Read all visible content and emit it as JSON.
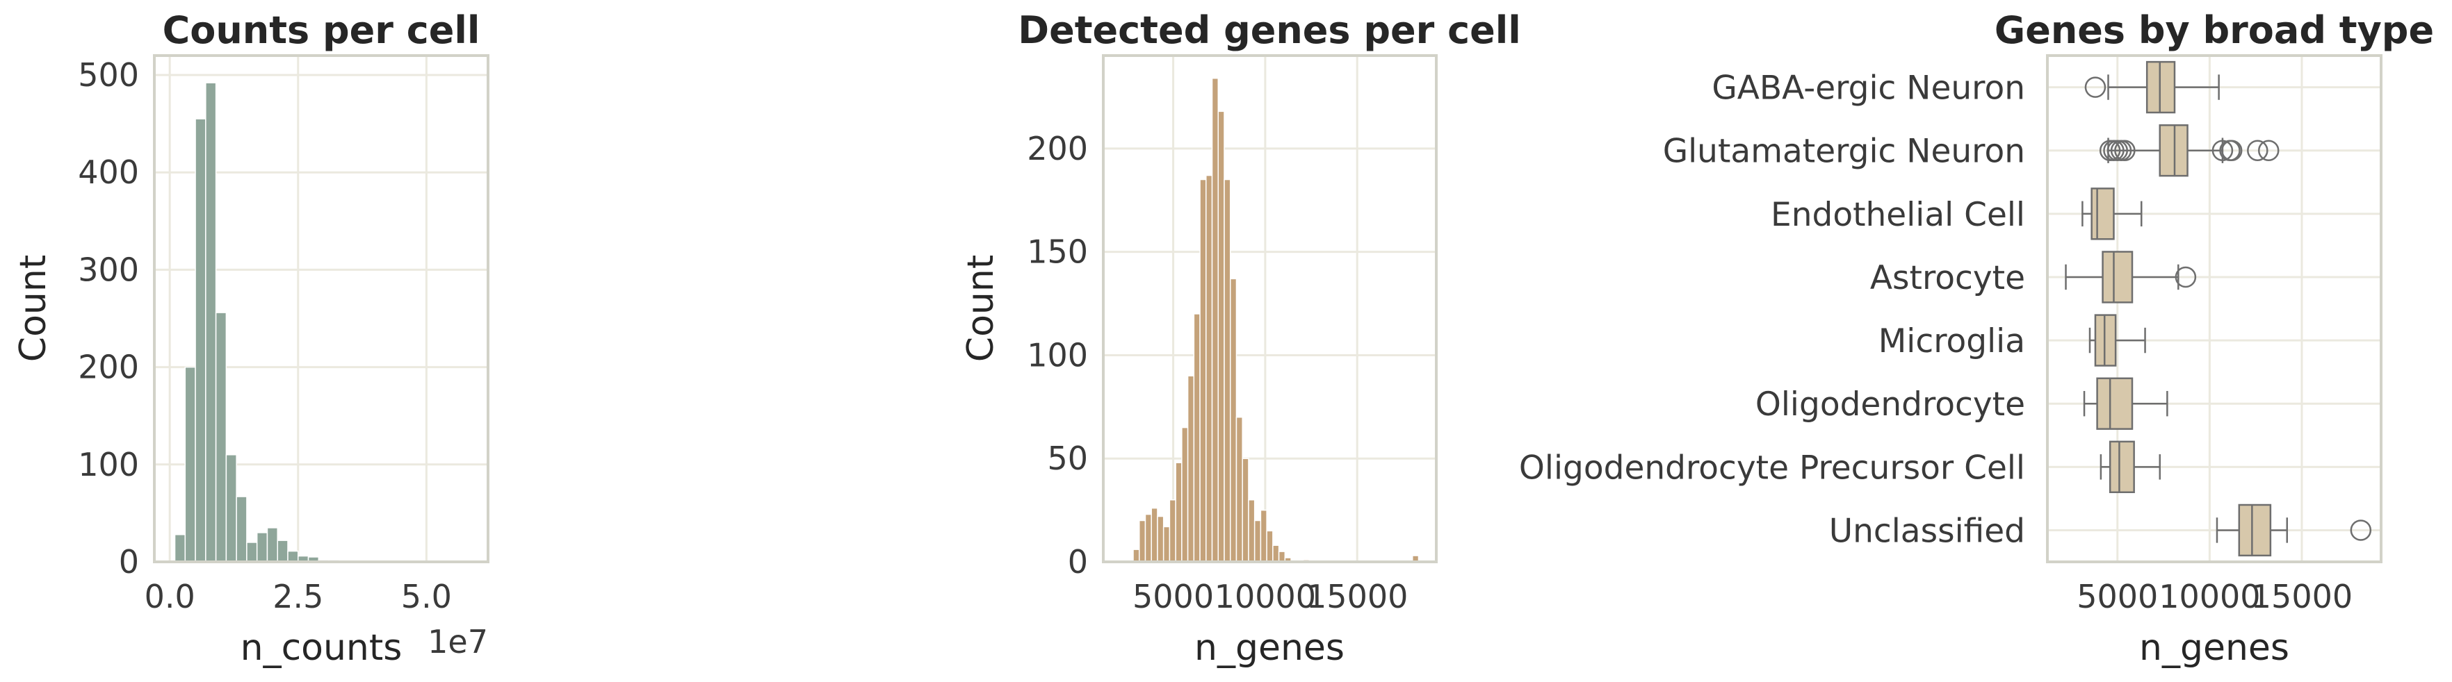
{
  "chart_data": [
    {
      "type": "bar",
      "subtype": "histogram",
      "title": "Counts per cell",
      "xlabel": "n_counts",
      "ylabel": "Count",
      "x_offset_label": "1e7",
      "xlim": [
        -0.3,
        6.2
      ],
      "ylim": [
        0,
        520
      ],
      "xticks": [
        "0.0",
        "2.5",
        "5.0"
      ],
      "yticks": [
        "0",
        "100",
        "200",
        "300",
        "400",
        "500"
      ],
      "bin_width": 0.2,
      "bins": [
        {
          "x": 0.2,
          "count": 28
        },
        {
          "x": 0.4,
          "count": 200
        },
        {
          "x": 0.6,
          "count": 455
        },
        {
          "x": 0.8,
          "count": 492
        },
        {
          "x": 1.0,
          "count": 256
        },
        {
          "x": 1.2,
          "count": 110
        },
        {
          "x": 1.4,
          "count": 67
        },
        {
          "x": 1.6,
          "count": 20
        },
        {
          "x": 1.8,
          "count": 30
        },
        {
          "x": 2.0,
          "count": 35
        },
        {
          "x": 2.2,
          "count": 22
        },
        {
          "x": 2.4,
          "count": 11
        },
        {
          "x": 2.6,
          "count": 6
        },
        {
          "x": 2.8,
          "count": 5
        },
        {
          "x": 3.0,
          "count": 2
        },
        {
          "x": 3.2,
          "count": 2
        },
        {
          "x": 3.4,
          "count": 1
        },
        {
          "x": 3.6,
          "count": 1
        },
        {
          "x": 3.8,
          "count": 1
        },
        {
          "x": 4.0,
          "count": 1
        },
        {
          "x": 4.4,
          "count": 1
        },
        {
          "x": 5.8,
          "count": 1
        }
      ],
      "grid": true,
      "color": "#8fa69a"
    },
    {
      "type": "bar",
      "subtype": "histogram",
      "title": "Detected genes per cell",
      "xlabel": "n_genes",
      "ylabel": "Count",
      "xlim": [
        1200,
        19300
      ],
      "ylim": [
        0,
        245
      ],
      "xticks": [
        "5000",
        "10000",
        "15000"
      ],
      "yticks": [
        "0",
        "50",
        "100",
        "150",
        "200"
      ],
      "bin_width": 330,
      "bins": [
        {
          "x": 2990,
          "count": 6
        },
        {
          "x": 3320,
          "count": 20
        },
        {
          "x": 3650,
          "count": 23
        },
        {
          "x": 3980,
          "count": 26
        },
        {
          "x": 4310,
          "count": 22
        },
        {
          "x": 4640,
          "count": 17
        },
        {
          "x": 4970,
          "count": 30
        },
        {
          "x": 5300,
          "count": 48
        },
        {
          "x": 5630,
          "count": 65
        },
        {
          "x": 5960,
          "count": 90
        },
        {
          "x": 6290,
          "count": 120
        },
        {
          "x": 6620,
          "count": 185
        },
        {
          "x": 6950,
          "count": 187
        },
        {
          "x": 7280,
          "count": 234
        },
        {
          "x": 7610,
          "count": 218
        },
        {
          "x": 7940,
          "count": 185
        },
        {
          "x": 8270,
          "count": 137
        },
        {
          "x": 8600,
          "count": 70
        },
        {
          "x": 8930,
          "count": 50
        },
        {
          "x": 9260,
          "count": 30
        },
        {
          "x": 9590,
          "count": 20
        },
        {
          "x": 9920,
          "count": 25
        },
        {
          "x": 10250,
          "count": 15
        },
        {
          "x": 10580,
          "count": 8
        },
        {
          "x": 10910,
          "count": 5
        },
        {
          "x": 11240,
          "count": 2
        },
        {
          "x": 12230,
          "count": 1
        },
        {
          "x": 18170,
          "count": 3
        }
      ],
      "grid": true,
      "color": "#c4a27a"
    },
    {
      "type": "box",
      "orientation": "horizontal",
      "title": "Genes by broad type",
      "xlabel": "n_genes",
      "ylabel": "",
      "xlim": [
        1200,
        19300
      ],
      "xticks": [
        "5000",
        "10000",
        "15000"
      ],
      "categories": [
        "GABA-ergic Neuron",
        "Glutamatergic Neuron",
        "Endothelial Cell",
        "Astrocyte",
        "Microglia",
        "Oligodendrocyte",
        "Oligodendrocyte Precursor Cell",
        "Unclassified"
      ],
      "boxes": [
        {
          "whislo": 4500,
          "q1": 6600,
          "med": 7300,
          "q3": 8100,
          "whishi": 10500,
          "fliers": [
            3800
          ]
        },
        {
          "whislo": 4500,
          "q1": 7300,
          "med": 8100,
          "q3": 8800,
          "whishi": 10700,
          "fliers": [
            4600,
            4800,
            5000,
            5200,
            5400,
            10700,
            11100,
            11200,
            12600,
            13200
          ]
        },
        {
          "whislo": 3100,
          "q1": 3600,
          "med": 3900,
          "q3": 4800,
          "whishi": 6300,
          "fliers": []
        },
        {
          "whislo": 2200,
          "q1": 4200,
          "med": 4800,
          "q3": 5800,
          "whishi": 8300,
          "fliers": [
            8700
          ]
        },
        {
          "whislo": 3500,
          "q1": 3800,
          "med": 4300,
          "q3": 4900,
          "whishi": 6500,
          "fliers": []
        },
        {
          "whislo": 3200,
          "q1": 3900,
          "med": 4600,
          "q3": 5800,
          "whishi": 7700,
          "fliers": []
        },
        {
          "whislo": 4100,
          "q1": 4600,
          "med": 5100,
          "q3": 5900,
          "whishi": 7300,
          "fliers": []
        },
        {
          "whislo": 10400,
          "q1": 11600,
          "med": 12300,
          "q3": 13300,
          "whishi": 14200,
          "fliers": [
            18200
          ]
        }
      ],
      "grid": true,
      "color": "#d7c8ab"
    }
  ]
}
